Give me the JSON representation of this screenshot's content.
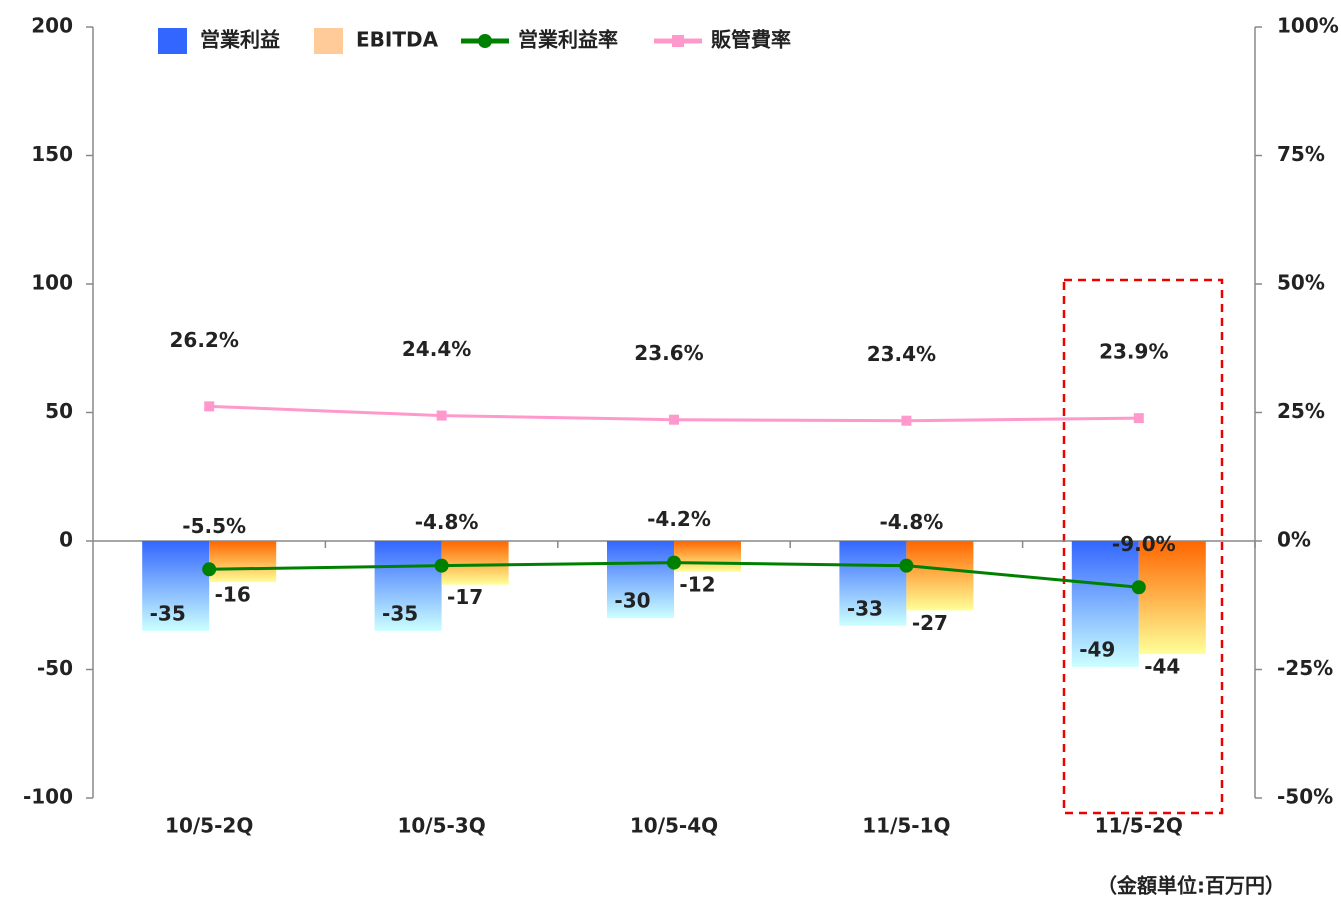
{
  "chart_data": {
    "type": "bar_line",
    "categories": [
      "10/5-2Q",
      "10/5-3Q",
      "10/5-4Q",
      "11/5-1Q",
      "11/5-2Q"
    ],
    "series": [
      {
        "name": "営業利益",
        "type": "bar",
        "color": "#3366ff",
        "values": [
          -35,
          -35,
          -30,
          -33,
          -49
        ]
      },
      {
        "name": "EBITDA",
        "type": "bar",
        "color": "#ffcc99",
        "values": [
          -16,
          -17,
          -12,
          -27,
          -44
        ]
      },
      {
        "name": "営業利益率",
        "type": "line",
        "axis": "y2",
        "color": "#008000",
        "values": [
          -5.5,
          -4.8,
          -4.2,
          -4.8,
          -9.0
        ],
        "value_labels": [
          "-5.5%",
          "-4.8%",
          "-4.2%",
          "-4.8%",
          "-9.0%"
        ]
      },
      {
        "name": "販管費率",
        "type": "line",
        "axis": "y2",
        "color": "#ff99cc",
        "values": [
          26.2,
          24.4,
          23.6,
          23.4,
          23.9
        ],
        "value_labels": [
          "26.2%",
          "24.4%",
          "23.6%",
          "23.4%",
          "23.9%"
        ]
      }
    ],
    "ylim": [
      -100,
      200
    ],
    "yticks": [
      -100,
      -50,
      0,
      50,
      100,
      150,
      200
    ],
    "y2lim": [
      -50,
      100
    ],
    "y2ticks": [
      {
        "value": -50,
        "label": "-50%"
      },
      {
        "value": -25,
        "label": "-25%"
      },
      {
        "value": 0,
        "label": "0%"
      },
      {
        "value": 25,
        "label": "25%"
      },
      {
        "value": 50,
        "label": "50%"
      },
      {
        "value": 75,
        "label": "75%"
      },
      {
        "value": 100,
        "label": "100%"
      }
    ],
    "note": "（金額単位:百万円）",
    "legend": "top"
  }
}
